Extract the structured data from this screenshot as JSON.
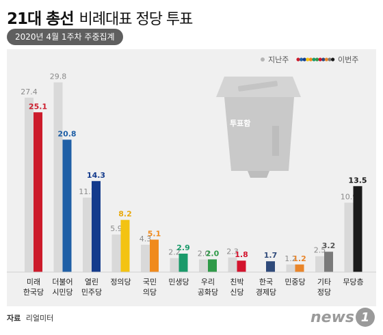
{
  "title": "21대 총선",
  "subtitle": "비례대표 정당 투표",
  "badge": "2020년 4월 1주차 주중집계",
  "source_label": "자료",
  "source_value": "리얼미터",
  "logo_text": "news",
  "logo_mark": "1",
  "ballot_box_label": "투표함",
  "legend": {
    "prev": "지난주",
    "curr": "이번주"
  },
  "colors": {
    "prev_bar": "#d9d9d9",
    "prev_value": "#8a8a8a",
    "panel": "#f0f0f0"
  },
  "chart_data": {
    "type": "bar",
    "ylim": [
      0,
      32
    ],
    "categories": [
      [
        "미래",
        "한국당"
      ],
      [
        "더불어",
        "시민당"
      ],
      [
        "열린",
        "민주당"
      ],
      [
        "정의당"
      ],
      [
        "국민",
        "의당"
      ],
      [
        "민생당"
      ],
      [
        "우리",
        "공화당"
      ],
      [
        "친박",
        "신당"
      ],
      [
        "한국",
        "경제당"
      ],
      [
        "민중당"
      ],
      [
        "기타",
        "정당"
      ],
      [
        "무당층"
      ]
    ],
    "series": [
      {
        "name": "지난주",
        "values": [
          27.4,
          29.8,
          11.7,
          5.9,
          4.3,
          2.2,
          2.0,
          2.3,
          null,
          1.2,
          2.5,
          10.9
        ]
      },
      {
        "name": "이번주",
        "values": [
          25.1,
          20.8,
          14.3,
          8.2,
          5.1,
          2.9,
          2.0,
          1.8,
          1.7,
          1.2,
          3.2,
          13.5
        ],
        "colors": [
          "#cc1b2b",
          "#1f5fa6",
          "#143b8c",
          "#f3c312",
          "#f08a1c",
          "#1a9a6a",
          "#2f9a48",
          "#d3132d",
          "#2f4a7a",
          "#e9852a",
          "#7a7a7a",
          "#1a1a1a"
        ],
        "label_colors": [
          "#cc1b2b",
          "#1f5fa6",
          "#143b8c",
          "#e8a90c",
          "#f08a1c",
          "#1a9a6a",
          "#2f9a48",
          "#d3132d",
          "#2f4a7a",
          "#e9852a",
          "#555555",
          "#1a1a1a"
        ]
      }
    ]
  }
}
